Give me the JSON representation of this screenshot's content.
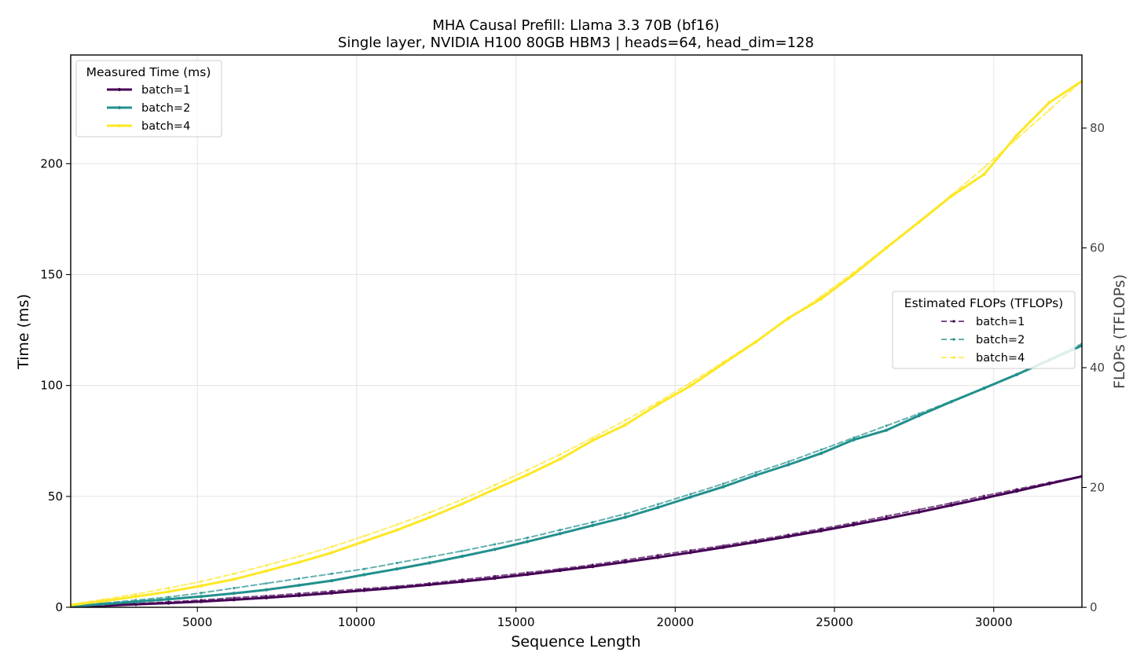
{
  "chart_data": {
    "type": "line",
    "title": "MHA Causal Prefill: Llama 3.3 70B (bf16)",
    "subtitle": "Single layer, NVIDIA H100 80GB HBM3 | heads=64, head_dim=128",
    "xlabel": "Sequence Length",
    "ylabel": "Time (ms)",
    "ylabel_right": "FLOPs (TFLOPs)",
    "xlim": [
      1024,
      32768
    ],
    "ylim": [
      0,
      249
    ],
    "ylim_right": [
      0,
      92.2
    ],
    "xticks": [
      5000,
      10000,
      15000,
      20000,
      25000,
      30000
    ],
    "yticks": [
      0,
      50,
      100,
      150,
      200
    ],
    "yticks_right": [
      0,
      20,
      40,
      60,
      80
    ],
    "grid": true,
    "legend_measured": {
      "title": "Measured Time (ms)",
      "placement": "upper-left",
      "entries": [
        "batch=1",
        "batch=2",
        "batch=4"
      ]
    },
    "legend_estimated": {
      "title": "Estimated FLOPs (TFLOPs)",
      "placement": "center-right",
      "entries": [
        "batch=1",
        "batch=2",
        "batch=4"
      ]
    },
    "colors": {
      "batch1": "#440154",
      "batch2": "#21908d",
      "batch4": "#fde725"
    },
    "x": [
      1024,
      2048,
      3072,
      4096,
      5120,
      6144,
      7168,
      8192,
      9216,
      10240,
      11264,
      12288,
      13312,
      14336,
      15360,
      16384,
      17408,
      18432,
      19456,
      20480,
      21504,
      22528,
      23552,
      24576,
      25600,
      26624,
      27648,
      28672,
      29696,
      30720,
      31744,
      32768
    ],
    "series": [
      {
        "name": "batch=1",
        "axis": "left",
        "style": "solid",
        "values": [
          0.2,
          0.7,
          1.3,
          1.9,
          2.6,
          3.4,
          4.3,
          5.3,
          6.4,
          7.6,
          8.8,
          10.2,
          11.6,
          13.1,
          14.8,
          16.6,
          18.4,
          20.4,
          22.5,
          24.7,
          27.0,
          29.4,
          31.9,
          34.5,
          37.2,
          40.0,
          42.9,
          46.0,
          49.2,
          52.4,
          55.7,
          59.0
        ]
      },
      {
        "name": "batch=2",
        "axis": "left",
        "style": "solid",
        "values": [
          0.4,
          1.4,
          2.5,
          3.6,
          4.9,
          6.3,
          7.9,
          9.9,
          12.0,
          14.7,
          17.3,
          20.0,
          23.0,
          26.1,
          29.6,
          33.2,
          36.9,
          40.6,
          45.0,
          49.7,
          54.3,
          59.5,
          64.3,
          69.4,
          75.5,
          79.8,
          86.4,
          92.7,
          98.8,
          104.9,
          111.4,
          118.0
        ]
      },
      {
        "name": "batch=4",
        "axis": "left",
        "style": "solid",
        "values": [
          1.0,
          2.8,
          4.8,
          7.0,
          9.7,
          12.6,
          16.4,
          20.3,
          24.6,
          29.7,
          34.8,
          40.5,
          46.6,
          53.2,
          59.7,
          66.8,
          75.2,
          82.2,
          91.4,
          99.8,
          109.8,
          119.6,
          130.4,
          139.0,
          150.0,
          162.0,
          173.6,
          185.4,
          195.2,
          212.8,
          227.6,
          237.2
        ]
      },
      {
        "name": "batch=1",
        "axis": "right",
        "style": "dashed",
        "values": [
          0.1,
          0.3,
          0.6,
          0.9,
          1.2,
          1.6,
          1.9,
          2.3,
          2.7,
          3.1,
          3.5,
          4.0,
          4.6,
          5.2,
          5.8,
          6.4,
          7.1,
          7.9,
          8.7,
          9.5,
          10.3,
          11.2,
          12.1,
          13.1,
          14.1,
          15.2,
          16.3,
          17.4,
          18.6,
          19.7,
          20.8,
          21.9
        ]
      },
      {
        "name": "batch=2",
        "axis": "right",
        "style": "dashed",
        "values": [
          0.3,
          0.7,
          1.2,
          1.7,
          2.4,
          3.2,
          4.0,
          4.8,
          5.6,
          6.4,
          7.4,
          8.4,
          9.4,
          10.5,
          11.6,
          12.9,
          14.2,
          15.6,
          17.2,
          18.9,
          20.6,
          22.5,
          24.3,
          26.3,
          28.3,
          30.3,
          32.3,
          34.4,
          36.6,
          38.9,
          41.4,
          44.0
        ]
      },
      {
        "name": "batch=4",
        "axis": "right",
        "style": "dashed",
        "values": [
          0.5,
          1.3,
          2.2,
          3.2,
          4.3,
          5.6,
          7.0,
          8.5,
          10.1,
          11.9,
          13.8,
          15.8,
          18.0,
          20.4,
          22.9,
          25.5,
          28.3,
          31.2,
          34.2,
          37.5,
          40.9,
          44.4,
          48.1,
          51.9,
          55.9,
          60.1,
          64.4,
          68.8,
          73.4,
          78.2,
          83.0,
          87.9
        ]
      }
    ]
  }
}
